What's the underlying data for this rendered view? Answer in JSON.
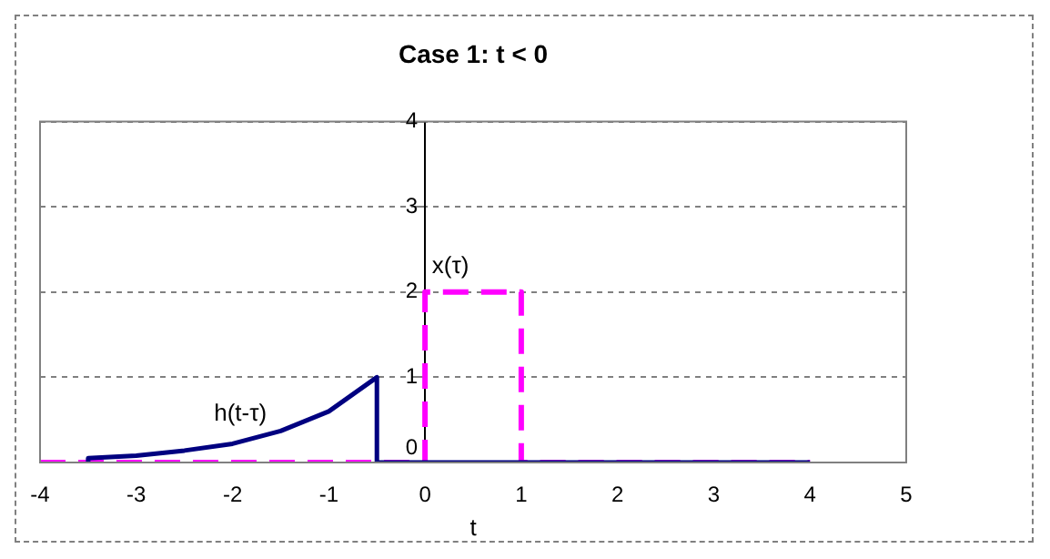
{
  "chart_data": {
    "type": "line",
    "title": "Case 1: t < 0",
    "xlabel": "t",
    "xlim": [
      -4,
      5
    ],
    "xticks": [
      -4,
      -3,
      -2,
      -1,
      0,
      1,
      2,
      3,
      4,
      5
    ],
    "ylim": [
      0,
      4
    ],
    "yticks": [
      0,
      1,
      2,
      3,
      4
    ],
    "grid": "y",
    "legend": false,
    "marker": "none",
    "series": [
      {
        "name": "h(t-τ)",
        "color": "#000080",
        "line_style": "solid",
        "x": [
          -3.5,
          -3.5,
          -3,
          -2.5,
          -2,
          -1.5,
          -1,
          -0.5,
          -0.5,
          4
        ],
        "values": [
          0,
          0.05,
          0.08,
          0.14,
          0.22,
          0.37,
          0.6,
          1,
          0,
          0
        ]
      },
      {
        "name": "x(τ)",
        "color": "#ff00ff",
        "line_style": "dashed",
        "x": [
          -4,
          0,
          0,
          1,
          1,
          4
        ],
        "values": [
          0,
          0,
          2,
          2,
          0,
          0
        ]
      }
    ]
  }
}
